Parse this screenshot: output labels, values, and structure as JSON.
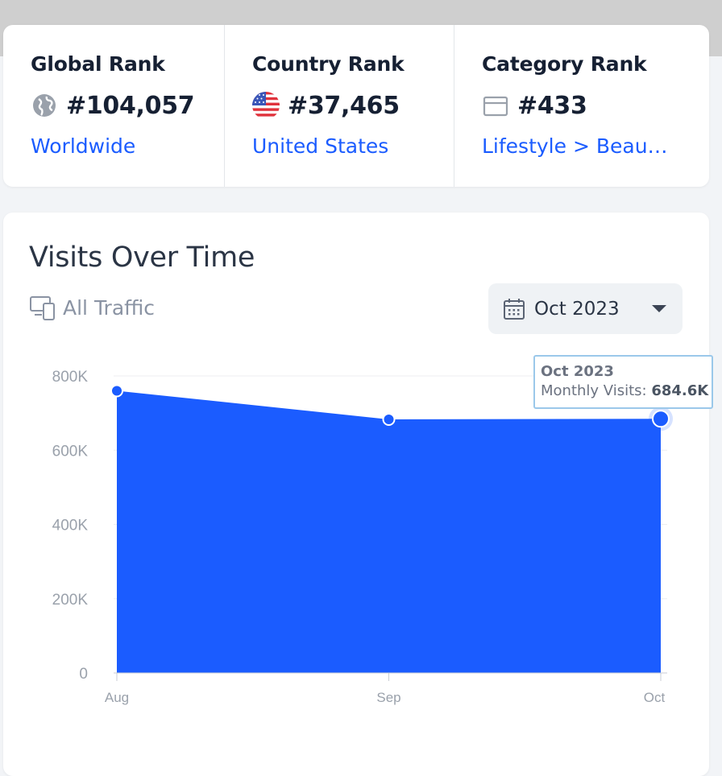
{
  "ranks": {
    "global": {
      "title": "Global Rank",
      "value": "#104,057",
      "link": "Worldwide"
    },
    "country": {
      "title": "Country Rank",
      "value": "#37,465",
      "link": "United States"
    },
    "category": {
      "title": "Category Rank",
      "value": "#433",
      "link": "Lifestyle > Beaut..."
    }
  },
  "visits": {
    "title": "Visits Over Time",
    "traffic_label": "All Traffic",
    "date_select": "Oct 2023"
  },
  "tooltip": {
    "title": "Oct 2023",
    "label": "Monthly Visits: ",
    "value": "684.6K"
  },
  "colors": {
    "accent": "#1b5cff",
    "area": "#1b5cff"
  },
  "chart_data": {
    "type": "area",
    "x": [
      "Aug",
      "Sep",
      "Oct"
    ],
    "series": [
      {
        "values": [
          760000,
          683000,
          684600
        ]
      }
    ],
    "yticks": [
      "0",
      "200K",
      "400K",
      "600K",
      "800K"
    ],
    "ylim": [
      0,
      800000
    ],
    "grid": true
  }
}
